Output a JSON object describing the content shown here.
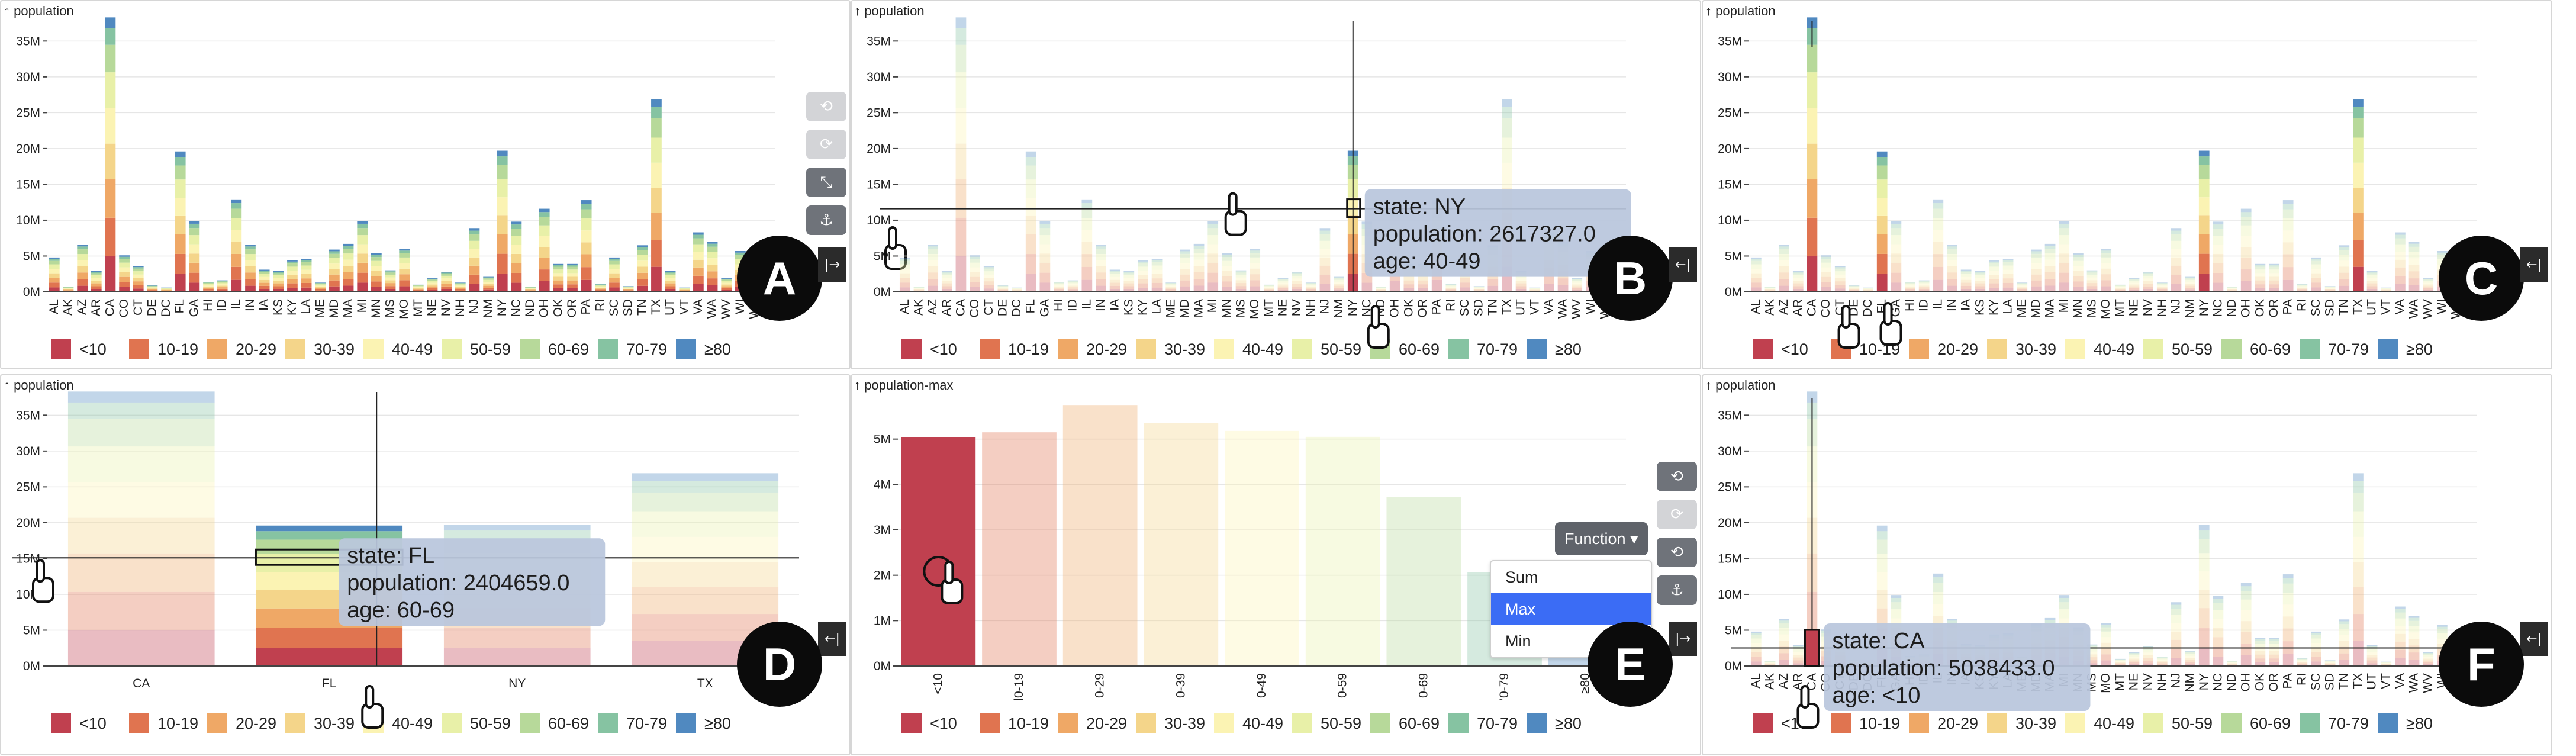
{
  "age_groups": {
    "labels": [
      "<10",
      "10-19",
      "20-29",
      "30-39",
      "40-49",
      "50-59",
      "60-69",
      "70-79",
      "≥80"
    ],
    "colors": [
      "#c0404f",
      "#e07450",
      "#efa866",
      "#f4d58a",
      "#fbf3b3",
      "#e8f0a8",
      "#b7d99a",
      "#86c3a2",
      "#5089c0"
    ]
  },
  "panels": [
    {
      "letter": "A",
      "y_label": "↑ population",
      "collapse_icon": "|→"
    },
    {
      "letter": "B",
      "y_label": "↑ population",
      "collapse_icon": "←|",
      "tooltip": {
        "state": "state: NY",
        "population": "population: 2617327.0",
        "age": "age: 40-49"
      }
    },
    {
      "letter": "C",
      "y_label": "↑ population",
      "collapse_icon": "←|"
    },
    {
      "letter": "D",
      "y_label": "↑ population",
      "collapse_icon": "←|",
      "tooltip": {
        "state": "state: FL",
        "population": "population: 2404659.0",
        "age": "age: 60-69"
      }
    },
    {
      "letter": "E",
      "y_label": "↑ population-max",
      "collapse_icon": "|→",
      "function_button": "Function ▾",
      "function_options": [
        "Sum",
        "Max",
        "Min"
      ],
      "function_selected": "Max"
    },
    {
      "letter": "F",
      "y_label": "↑ population",
      "collapse_icon": "←|",
      "tooltip": {
        "state": "state: CA",
        "population": "population: 5038433.0",
        "age": "age: <10"
      }
    }
  ],
  "side_buttons": [
    "undo-icon",
    "redo-icon",
    "shrink-icon",
    "anchor-icon"
  ],
  "chart_data": [
    {
      "type": "bar",
      "title": "",
      "ylabel": "population",
      "stacked": true,
      "ylim": [
        0,
        38000000
      ],
      "yticks": [
        "0M",
        "5M",
        "10M",
        "15M",
        "20M",
        "25M",
        "30M",
        "35M"
      ],
      "categories": [
        "AL",
        "AK",
        "AZ",
        "AR",
        "CA",
        "CO",
        "CT",
        "DE",
        "DC",
        "FL",
        "GA",
        "HI",
        "ID",
        "IL",
        "IN",
        "IA",
        "KS",
        "KY",
        "LA",
        "ME",
        "MD",
        "MA",
        "MI",
        "MN",
        "MS",
        "MO",
        "MT",
        "NE",
        "NV",
        "NH",
        "NJ",
        "NM",
        "NY",
        "NC",
        "ND",
        "OH",
        "OK",
        "OR",
        "PA",
        "RI",
        "SC",
        "SD",
        "TN",
        "TX",
        "UT",
        "VT",
        "VA",
        "WA",
        "WV",
        "WI",
        "WY",
        "PR"
      ],
      "totals_millions": [
        4.8,
        0.7,
        6.6,
        2.9,
        38.3,
        5.1,
        3.6,
        0.9,
        0.6,
        19.6,
        9.9,
        1.4,
        1.6,
        12.9,
        6.6,
        3.1,
        2.9,
        4.4,
        4.6,
        1.3,
        5.9,
        6.7,
        9.9,
        5.4,
        3.0,
        6.0,
        1.0,
        1.9,
        2.8,
        1.3,
        8.9,
        2.1,
        19.7,
        9.8,
        0.7,
        11.6,
        3.9,
        3.9,
        12.8,
        1.1,
        4.8,
        0.8,
        6.5,
        26.9,
        2.9,
        0.6,
        8.3,
        7.0,
        1.9,
        5.7,
        0.6,
        3.6
      ],
      "age_shares": [
        0.13,
        0.14,
        0.14,
        0.13,
        0.13,
        0.13,
        0.1,
        0.06,
        0.04
      ],
      "legend": [
        "<10",
        "10-19",
        "20-29",
        "30-39",
        "40-49",
        "50-59",
        "60-69",
        "70-79",
        "≥80"
      ]
    },
    {
      "type": "bar",
      "title": "",
      "ylabel": "population",
      "stacked": true,
      "ylim": [
        0,
        38000000
      ],
      "yticks": [
        "0M",
        "5M",
        "10M",
        "15M",
        "20M",
        "25M",
        "30M",
        "35M"
      ],
      "categories": [
        "CA",
        "FL",
        "NY",
        "TX"
      ],
      "totals_millions": [
        38.3,
        19.6,
        19.7,
        26.9
      ],
      "age_shares": [
        0.13,
        0.14,
        0.14,
        0.13,
        0.13,
        0.13,
        0.1,
        0.06,
        0.04
      ],
      "legend": [
        "<10",
        "10-19",
        "20-29",
        "30-39",
        "40-49",
        "50-59",
        "60-69",
        "70-79",
        "≥80"
      ]
    },
    {
      "type": "bar",
      "title": "",
      "ylabel": "population-max",
      "ylim": [
        0,
        6000000
      ],
      "yticks": [
        "0M",
        "1M",
        "2M",
        "3M",
        "4M",
        "5M"
      ],
      "categories": [
        "<10",
        "10-19",
        "20-29",
        "30-39",
        "40-49",
        "50-59",
        "60-69",
        "70-79",
        "≥80"
      ],
      "tick_labels": [
        "<10",
        "l0-19",
        "0-29",
        "0-39",
        "0-49",
        "0-59",
        "0-69",
        "'0-79",
        "≥80"
      ],
      "values_millions": [
        5.04,
        5.15,
        5.75,
        5.35,
        5.18,
        5.05,
        3.72,
        2.07,
        1.15
      ],
      "legend": [
        "<10",
        "10-19",
        "20-29",
        "30-39",
        "40-49",
        "50-59",
        "60-69",
        "70-79",
        "≥80"
      ]
    }
  ]
}
